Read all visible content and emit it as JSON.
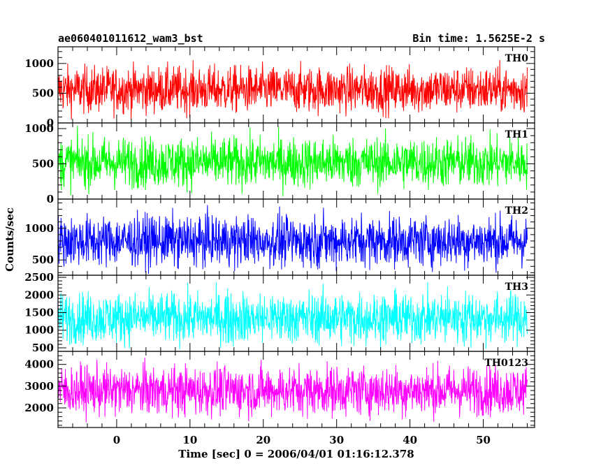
{
  "chart_data": {
    "type": "line",
    "title": "ae060401011612_wam3_bst",
    "subtitle": "Bin time: 1.5625E-2 s",
    "xlabel": "Time [sec] 0 = 2006/04/01 01:16:12.378",
    "ylabel": "Counts/sec",
    "xlim": [
      -8,
      57
    ],
    "x_range": [
      -8,
      56
    ],
    "x_ticks": [
      0,
      10,
      20,
      30,
      40,
      50
    ],
    "grid": false,
    "panels": [
      {
        "name": "TH0",
        "color": "#ff0000",
        "ylim": [
          0,
          1280
        ],
        "y_ticks": [
          0,
          500,
          1000
        ],
        "mean": 560,
        "spread": 195,
        "min": 20,
        "max": 1280
      },
      {
        "name": "TH1",
        "color": "#00ff00",
        "ylim": [
          0,
          1080
        ],
        "y_ticks": [
          0,
          500,
          1000
        ],
        "mean": 520,
        "spread": 180,
        "min": 10,
        "max": 1080
      },
      {
        "name": "TH2",
        "color": "#0000ff",
        "ylim": [
          260,
          1460
        ],
        "y_ticks": [
          500,
          1000
        ],
        "mean": 800,
        "spread": 200,
        "min": 280,
        "max": 1460
      },
      {
        "name": "TH3",
        "color": "#00ffff",
        "ylim": [
          400,
          2560
        ],
        "y_ticks": [
          500,
          1000,
          1500,
          2000,
          2500
        ],
        "mean": 1350,
        "spread": 360,
        "min": 420,
        "max": 2560
      },
      {
        "name": "TH0123",
        "color": "#ff00ff",
        "ylim": [
          1100,
          4600
        ],
        "y_ticks": [
          2000,
          3000,
          4000
        ],
        "mean": 2800,
        "spread": 570,
        "min": 1150,
        "max": 4600
      }
    ]
  }
}
